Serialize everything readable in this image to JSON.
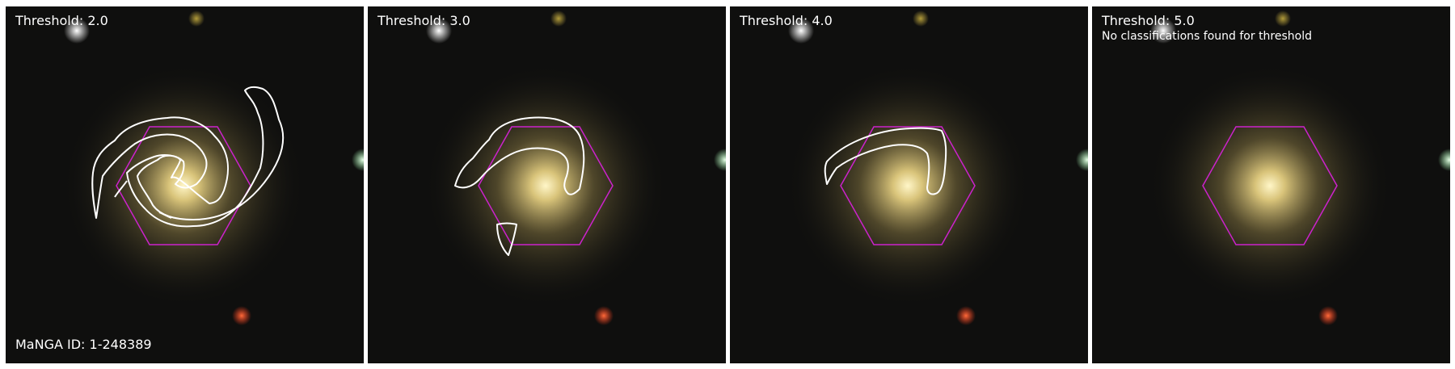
{
  "galaxy": {
    "manga_id_label": "MaNGA ID: 1-248389"
  },
  "panels": [
    {
      "threshold_label": "Threshold: 2.0",
      "note": ""
    },
    {
      "threshold_label": "Threshold: 3.0",
      "note": ""
    },
    {
      "threshold_label": "Threshold: 4.0",
      "note": ""
    },
    {
      "threshold_label": "Threshold: 5.0",
      "note": "No classifications found for threshold"
    }
  ],
  "colors": {
    "hexagon": "#cc22cc",
    "contour": "#ffffff",
    "background": "#0f0f0e"
  }
}
